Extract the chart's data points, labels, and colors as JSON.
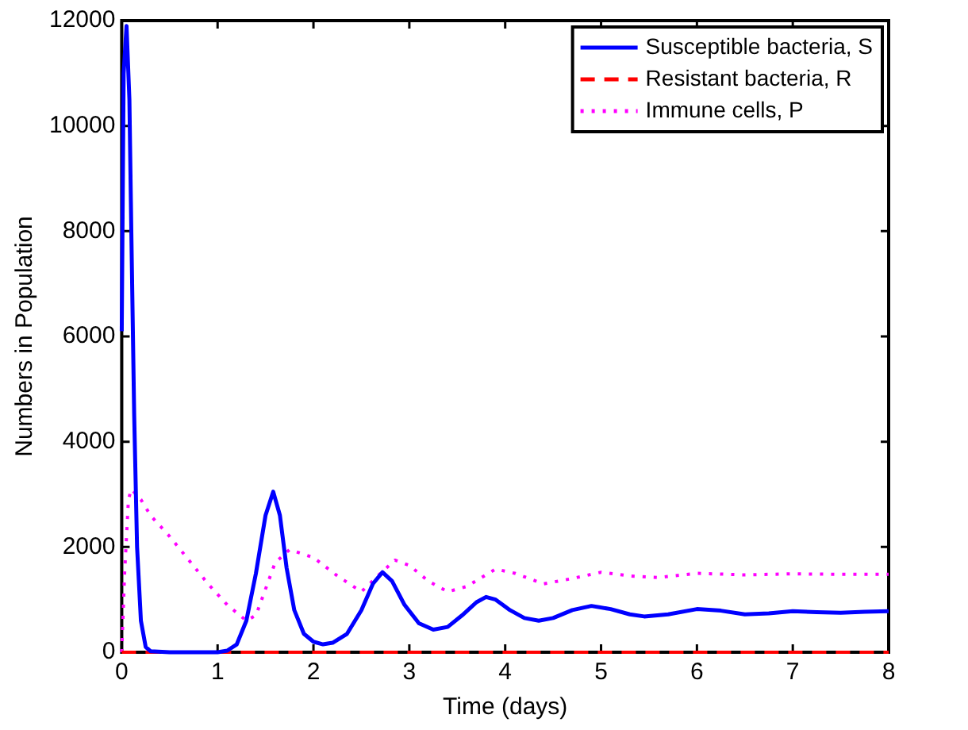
{
  "chart_data": {
    "type": "line",
    "xlabel": "Time (days)",
    "ylabel": "Numbers in Population",
    "xlim": [
      0,
      8
    ],
    "ylim": [
      0,
      12000
    ],
    "xticks": [
      0,
      1,
      2,
      3,
      4,
      5,
      6,
      7,
      8
    ],
    "yticks": [
      0,
      2000,
      4000,
      6000,
      8000,
      10000,
      12000
    ],
    "grid": false,
    "legend": "top right",
    "marker": "none",
    "series": [
      {
        "name": "Susceptible bacteria, S",
        "color": "#0000ff",
        "line_style": "solid",
        "x": [
          0,
          0.02,
          0.05,
          0.08,
          0.1,
          0.13,
          0.16,
          0.2,
          0.25,
          0.3,
          0.5,
          0.8,
          1.0,
          1.1,
          1.2,
          1.3,
          1.4,
          1.5,
          1.58,
          1.65,
          1.72,
          1.8,
          1.9,
          2.0,
          2.1,
          2.2,
          2.35,
          2.5,
          2.62,
          2.72,
          2.82,
          2.95,
          3.1,
          3.25,
          3.4,
          3.55,
          3.7,
          3.8,
          3.9,
          4.05,
          4.2,
          4.35,
          4.5,
          4.7,
          4.9,
          5.1,
          5.3,
          5.45,
          5.7,
          6.0,
          6.25,
          6.5,
          6.75,
          7.0,
          7.25,
          7.5,
          7.75,
          8.0
        ],
        "values": [
          6100,
          11000,
          11900,
          10500,
          8000,
          4500,
          2000,
          600,
          100,
          20,
          0,
          0,
          0,
          30,
          150,
          600,
          1500,
          2600,
          3050,
          2600,
          1600,
          800,
          350,
          200,
          150,
          180,
          350,
          800,
          1300,
          1520,
          1350,
          900,
          550,
          430,
          480,
          700,
          950,
          1050,
          1000,
          800,
          650,
          600,
          650,
          800,
          880,
          820,
          720,
          680,
          720,
          820,
          790,
          720,
          740,
          780,
          760,
          750,
          770,
          780
        ]
      },
      {
        "name": "Resistant bacteria, R",
        "color": "#ff0000",
        "line_style": "dashed",
        "x": [
          0,
          8
        ],
        "values": [
          0,
          0
        ]
      },
      {
        "name": "Immune cells, P",
        "color": "#ff00ff",
        "line_style": "dotted",
        "x": [
          0,
          0.03,
          0.07,
          0.1,
          0.2,
          0.3,
          0.5,
          0.7,
          0.9,
          1.1,
          1.3,
          1.4,
          1.5,
          1.6,
          1.75,
          2.0,
          2.25,
          2.5,
          2.7,
          2.85,
          3.0,
          3.2,
          3.4,
          3.6,
          3.9,
          4.1,
          4.4,
          4.7,
          5.0,
          5.3,
          5.6,
          6.0,
          6.5,
          7.0,
          7.5,
          8.0
        ],
        "values": [
          0,
          1500,
          2900,
          3100,
          2900,
          2600,
          2200,
          1750,
          1300,
          900,
          600,
          700,
          1200,
          1700,
          1950,
          1800,
          1450,
          1150,
          1500,
          1750,
          1650,
          1350,
          1150,
          1250,
          1580,
          1500,
          1300,
          1400,
          1520,
          1450,
          1420,
          1500,
          1470,
          1490,
          1480,
          1480
        ]
      }
    ]
  }
}
